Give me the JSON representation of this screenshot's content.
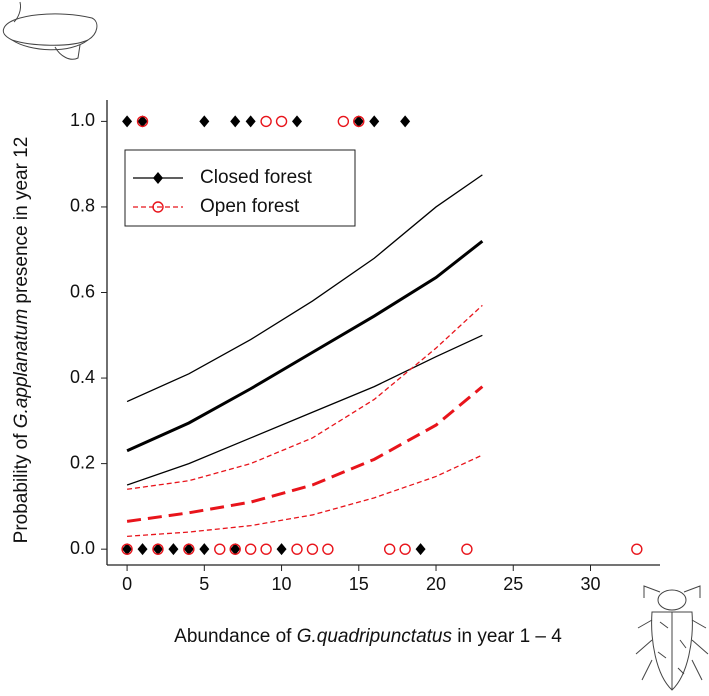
{
  "chart_data": {
    "type": "scatter",
    "xlabel": [
      "Abundance of ",
      "G.quadripunctatus",
      " in year 1 – 4"
    ],
    "ylabel": [
      "Probability of ",
      "G.applanatum",
      " presence in year 12"
    ],
    "xlim": [
      -1.3,
      34.5
    ],
    "ylim": [
      -0.037,
      1.05
    ],
    "xticks": [
      0,
      5,
      10,
      15,
      20,
      25,
      30
    ],
    "yticks": [
      {
        "value": 0,
        "label": "0.0"
      },
      {
        "value": 0.2,
        "label": "0.2"
      },
      {
        "value": 0.4,
        "label": "0.4"
      },
      {
        "value": 0.6,
        "label": "0.6"
      },
      {
        "value": 0.8,
        "label": "0.8"
      },
      {
        "value": 1,
        "label": "1.0"
      }
    ],
    "legend": "upper left",
    "series": [
      {
        "name": "Closed forest",
        "color": "#000000",
        "marker": "diamond",
        "x": [
          0,
          1,
          5,
          7,
          8,
          11,
          15,
          16,
          18,
          0,
          1,
          2,
          3,
          4,
          5,
          7,
          10,
          19
        ],
        "values": [
          1,
          1,
          1,
          1,
          1,
          1,
          1,
          1,
          1,
          0,
          0,
          0,
          0,
          0,
          0,
          0,
          0,
          0
        ]
      },
      {
        "name": "Open forest",
        "color": "#e8141b",
        "marker": "circle",
        "x": [
          1,
          9,
          10,
          14,
          15,
          0,
          2,
          4,
          6,
          7,
          8,
          9,
          11,
          12,
          13,
          17,
          18,
          22,
          33
        ],
        "values": [
          1,
          1,
          1,
          1,
          1,
          0,
          0,
          0,
          0,
          0,
          0,
          0,
          0,
          0,
          0,
          0,
          0,
          0,
          0
        ]
      }
    ],
    "lines": [
      {
        "color": "#000000",
        "width": 3,
        "dashed": false,
        "x": [
          0,
          4,
          8,
          12,
          16,
          20,
          23
        ],
        "values": [
          0.23,
          0.295,
          0.375,
          0.46,
          0.545,
          0.635,
          0.72
        ]
      },
      {
        "color": "#000000",
        "width": 1.3,
        "dashed": false,
        "x": [
          0,
          4,
          8,
          12,
          16,
          20,
          23
        ],
        "values": [
          0.345,
          0.41,
          0.49,
          0.58,
          0.68,
          0.8,
          0.875
        ]
      },
      {
        "color": "#000000",
        "width": 1.3,
        "dashed": false,
        "x": [
          0,
          4,
          8,
          12,
          16,
          20,
          23
        ],
        "values": [
          0.15,
          0.2,
          0.26,
          0.32,
          0.38,
          0.45,
          0.5
        ]
      },
      {
        "color": "#e8141b",
        "width": 3,
        "dashed": true,
        "x": [
          0,
          4,
          8,
          12,
          16,
          20,
          23
        ],
        "values": [
          0.065,
          0.085,
          0.11,
          0.15,
          0.21,
          0.29,
          0.38
        ]
      },
      {
        "color": "#e8141b",
        "width": 1.3,
        "dashed": true,
        "x": [
          0,
          4,
          8,
          12,
          16,
          20,
          23
        ],
        "values": [
          0.14,
          0.16,
          0.2,
          0.26,
          0.35,
          0.47,
          0.57
        ]
      },
      {
        "color": "#e8141b",
        "width": 1.3,
        "dashed": true,
        "x": [
          0,
          4,
          8,
          12,
          16,
          20,
          23
        ],
        "values": [
          0.03,
          0.04,
          0.055,
          0.08,
          0.12,
          0.17,
          0.22
        ]
      }
    ]
  }
}
